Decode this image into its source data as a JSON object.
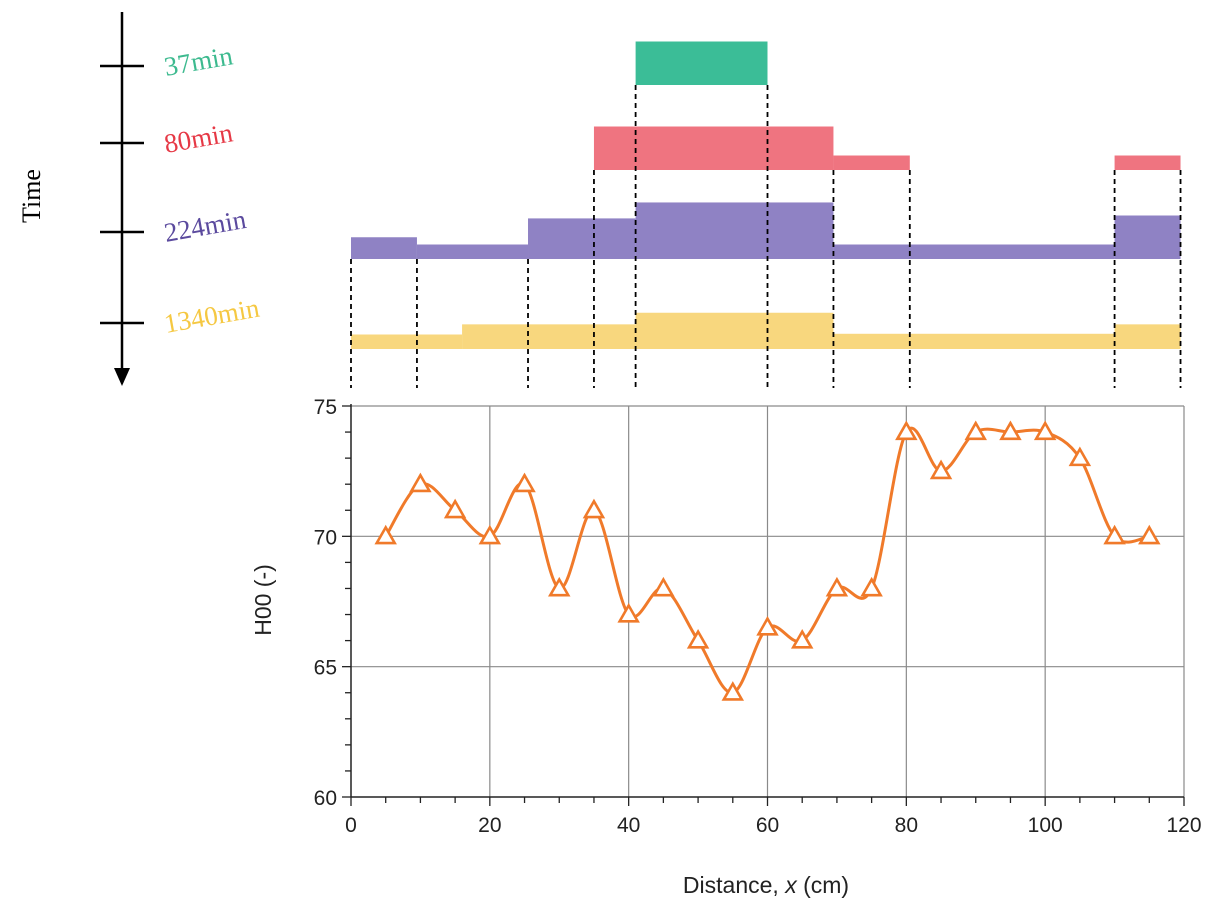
{
  "time_axis": {
    "label": "Time",
    "entries": [
      {
        "label": "37min",
        "color": "#3dba8f"
      },
      {
        "label": "80min",
        "color": "#e63946"
      },
      {
        "label": "224min",
        "color": "#5b4a9e"
      },
      {
        "label": "1340min",
        "color": "#f5c842"
      }
    ]
  },
  "profile_bars": [
    {
      "time": "37min",
      "color": "#3bbd97",
      "segments": [
        {
          "x0": 41,
          "x1": 60,
          "level": 3
        }
      ]
    },
    {
      "time": "80min",
      "color": "#ef7480",
      "segments": [
        {
          "x0": 35,
          "x1": 69.5,
          "level": 3
        },
        {
          "x0": 69.5,
          "x1": 80.5,
          "level": 1
        },
        {
          "x0": 110,
          "x1": 119.5,
          "level": 1
        }
      ]
    },
    {
      "time": "224min",
      "color": "#8f82c4",
      "segments": [
        {
          "x0": 0,
          "x1": 9.5,
          "level": 1.5
        },
        {
          "x0": 9.5,
          "x1": 25.5,
          "level": 1
        },
        {
          "x0": 25.5,
          "x1": 41,
          "level": 2.8
        },
        {
          "x0": 41,
          "x1": 69.5,
          "level": 3.9
        },
        {
          "x0": 69.5,
          "x1": 110,
          "level": 1
        },
        {
          "x0": 110,
          "x1": 119.5,
          "level": 3
        }
      ]
    },
    {
      "time": "1340min",
      "color": "#f8d77e",
      "segments": [
        {
          "x0": 0,
          "x1": 16,
          "level": 1
        },
        {
          "x0": 16,
          "x1": 41,
          "level": 1.7
        },
        {
          "x0": 41,
          "x1": 69.5,
          "level": 2.5
        },
        {
          "x0": 69.5,
          "x1": 110,
          "level": 1.05
        },
        {
          "x0": 110,
          "x1": 119.5,
          "level": 1.7
        }
      ]
    }
  ],
  "boundaries": [
    0,
    9.5,
    25.5,
    35,
    41,
    60,
    69.5,
    80.5,
    110,
    119.5
  ],
  "chart_data": {
    "type": "line",
    "xlabel_prefix": "Distance, ",
    "xlabel_var": "x",
    "xlabel_suffix": " (cm)",
    "ylabel": "H00 (-)",
    "xlim": [
      0,
      120
    ],
    "ylim": [
      60,
      75
    ],
    "xticks": [
      0,
      20,
      40,
      60,
      80,
      100,
      120
    ],
    "yticks": [
      60,
      65,
      70,
      75
    ],
    "grid": true,
    "series": [
      {
        "color": "#f07a2a",
        "marker": "triangle-open",
        "x": [
          5,
          10,
          15,
          20,
          25,
          30,
          35,
          40,
          45,
          50,
          55,
          60,
          65,
          70,
          75,
          80,
          85,
          90,
          95,
          100,
          105,
          110,
          115
        ],
        "y": [
          70,
          72,
          71,
          70,
          72,
          68,
          71,
          67,
          68,
          66,
          64,
          66.5,
          66,
          68,
          68,
          74,
          72.5,
          74,
          74,
          74,
          73,
          70,
          70
        ]
      }
    ]
  }
}
